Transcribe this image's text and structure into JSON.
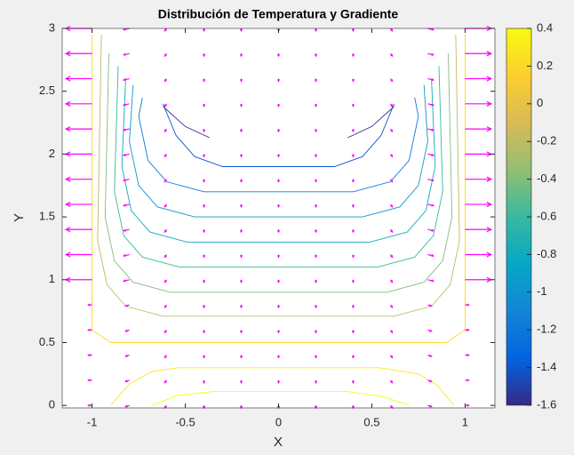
{
  "chart_data": {
    "type": "contour-quiver",
    "title": "Distribución de Temperatura y Gradiente",
    "xlabel": "X",
    "ylabel": "Y",
    "xlim": [
      -1.16,
      1.16
    ],
    "ylim": [
      -0.02,
      3
    ],
    "xticks": [
      -1,
      -0.5,
      0,
      0.5,
      1
    ],
    "yticks": [
      0,
      0.5,
      1,
      1.5,
      2,
      2.5,
      3
    ],
    "colormap": "parula",
    "clim": [
      -1.6,
      0.4
    ],
    "cticks": [
      0.4,
      0.2,
      0,
      -0.2,
      -0.4,
      -0.6,
      -0.8,
      -1,
      -1.2,
      -1.4,
      -1.6
    ],
    "contours": [
      {
        "level": 0.2,
        "x": [
          -1,
          -1,
          -0.9,
          0.9,
          1,
          1
        ],
        "y": [
          2.95,
          0.6,
          0.5,
          0.5,
          0.6,
          2.95
        ]
      },
      {
        "level": 0.3,
        "x": [
          -0.9,
          -0.8,
          -0.68,
          -0.54,
          0.54,
          0.75,
          0.85,
          0.94
        ],
        "y": [
          0,
          0.17,
          0.27,
          0.3,
          0.3,
          0.25,
          0.16,
          0
        ]
      },
      {
        "level": 0.4,
        "x": [
          -0.68,
          -0.54,
          -0.35,
          0.37,
          0.56,
          0.7
        ],
        "y": [
          0,
          0.08,
          0.11,
          0.11,
          0.07,
          0
        ]
      },
      {
        "level": -0.2,
        "x": [
          -0.95,
          -0.97,
          -0.92,
          -0.82,
          -0.62,
          0.62,
          0.82,
          0.92,
          0.97,
          0.95
        ],
        "y": [
          2.95,
          1.31,
          0.96,
          0.79,
          0.71,
          0.71,
          0.79,
          0.96,
          1.31,
          2.95
        ]
      },
      {
        "level": -0.4,
        "x": [
          -0.91,
          -0.93,
          -0.88,
          -0.78,
          -0.58,
          0.58,
          0.78,
          0.88,
          0.93,
          0.91
        ],
        "y": [
          2.8,
          1.5,
          1.15,
          0.98,
          0.9,
          0.9,
          0.98,
          1.15,
          1.5,
          2.8
        ]
      },
      {
        "level": -0.6,
        "x": [
          -0.86,
          -0.88,
          -0.83,
          -0.73,
          -0.53,
          0.53,
          0.73,
          0.83,
          0.88,
          0.86
        ],
        "y": [
          2.7,
          1.7,
          1.35,
          1.18,
          1.1,
          1.1,
          1.18,
          1.35,
          1.7,
          2.7
        ]
      },
      {
        "level": -0.8,
        "x": [
          -0.82,
          -0.84,
          -0.79,
          -0.69,
          -0.49,
          0.49,
          0.69,
          0.79,
          0.84,
          0.82
        ],
        "y": [
          2.6,
          1.9,
          1.55,
          1.38,
          1.3,
          1.3,
          1.38,
          1.55,
          1.9,
          2.6
        ]
      },
      {
        "level": -1,
        "x": [
          -0.78,
          -0.8,
          -0.75,
          -0.65,
          -0.45,
          0.45,
          0.65,
          0.75,
          0.8,
          0.78
        ],
        "y": [
          2.55,
          2.1,
          1.75,
          1.58,
          1.5,
          1.5,
          1.58,
          1.75,
          2.1,
          2.55
        ]
      },
      {
        "level": -1.2,
        "x": [
          -0.73,
          -0.75,
          -0.7,
          -0.6,
          -0.4,
          0.4,
          0.6,
          0.7,
          0.75,
          0.73
        ],
        "y": [
          2.45,
          2.3,
          1.95,
          1.78,
          1.7,
          1.7,
          1.78,
          1.95,
          2.3,
          2.45
        ]
      },
      {
        "level": -1.4,
        "x": [
          -0.62,
          -0.55,
          -0.45,
          -0.3,
          0.3,
          0.45,
          0.55,
          0.62
        ],
        "y": [
          2.4,
          2.15,
          1.98,
          1.9,
          1.9,
          1.98,
          2.15,
          2.4
        ]
      },
      {
        "level": -1.6,
        "x": [
          -0.62,
          -0.5,
          -0.37,
          null,
          0.37,
          0.5,
          0.62
        ],
        "y": [
          2.38,
          2.22,
          2.13,
          null,
          2.13,
          2.22,
          2.38
        ]
      }
    ],
    "quiver": {
      "color": "#ff00ff",
      "x": [
        -1,
        -0.8,
        -0.6,
        -0.4,
        -0.2,
        0,
        0.2,
        0.4,
        0.6,
        0.8,
        1
      ],
      "y": [
        0,
        0.2,
        0.4,
        0.6,
        0.8,
        1,
        1.2,
        1.4,
        1.6,
        1.8,
        2,
        2.2,
        2.4,
        2.6,
        2.8,
        3
      ],
      "u": [
        [
          -0.02,
          -0.02,
          -0.01,
          0,
          0,
          0,
          0,
          0,
          0.01,
          0.02,
          0.02
        ],
        [
          -0.02,
          -0.02,
          -0.01,
          0,
          0,
          0,
          0,
          0,
          0.01,
          0.02,
          0.02
        ],
        [
          -0.02,
          -0.02,
          -0.01,
          0,
          0,
          0,
          0,
          0,
          0.01,
          0.02,
          0.02
        ],
        [
          -0.02,
          -0.02,
          -0.01,
          0,
          0,
          0,
          0,
          0,
          0.01,
          0.02,
          0.02
        ],
        [
          -0.02,
          -0.02,
          -0.01,
          0,
          0,
          0,
          0,
          0,
          0.01,
          0.02,
          0.02
        ],
        [
          -0.14,
          -0.03,
          -0.01,
          0,
          0,
          0,
          0,
          0,
          0.01,
          0.03,
          0.14
        ],
        [
          -0.14,
          -0.03,
          -0.01,
          0,
          0,
          0,
          0,
          0,
          0.01,
          0.03,
          0.14
        ],
        [
          -0.14,
          -0.03,
          -0.01,
          0,
          0,
          0,
          0,
          0,
          0.01,
          0.03,
          0.14
        ],
        [
          -0.14,
          -0.03,
          -0.01,
          0,
          0,
          0,
          0,
          0,
          0.01,
          0.03,
          0.14
        ],
        [
          -0.14,
          -0.03,
          -0.01,
          0,
          0,
          0,
          0,
          0,
          0.01,
          0.03,
          0.14
        ],
        [
          -0.14,
          -0.03,
          -0.01,
          0,
          0,
          0,
          0,
          0,
          0.01,
          0.03,
          0.14
        ],
        [
          -0.14,
          -0.03,
          -0.01,
          0,
          0,
          0,
          0,
          0,
          0.01,
          0.03,
          0.14
        ],
        [
          -0.14,
          -0.03,
          -0.01,
          0,
          0,
          0,
          0,
          0,
          0.01,
          0.03,
          0.14
        ],
        [
          -0.14,
          -0.03,
          -0.01,
          0,
          0,
          0,
          0,
          0,
          0.01,
          0.03,
          0.14
        ],
        [
          -0.14,
          -0.03,
          -0.01,
          0,
          0,
          0,
          0,
          0,
          0.01,
          0.03,
          0.14
        ],
        [
          -0.14,
          -0.03,
          -0.01,
          0,
          0,
          0,
          0,
          0,
          0.01,
          0.03,
          0.14
        ]
      ],
      "v": [
        [
          0,
          -0.01,
          -0.02,
          -0.02,
          -0.02,
          -0.02,
          -0.02,
          -0.02,
          -0.02,
          -0.01,
          0
        ],
        [
          0,
          -0.01,
          -0.02,
          -0.02,
          -0.02,
          -0.02,
          -0.02,
          -0.02,
          -0.02,
          -0.01,
          0
        ],
        [
          0,
          -0.01,
          -0.02,
          -0.02,
          -0.02,
          -0.02,
          -0.02,
          -0.02,
          -0.02,
          -0.01,
          0
        ],
        [
          0,
          -0.01,
          -0.02,
          -0.02,
          -0.02,
          -0.02,
          -0.02,
          -0.02,
          -0.02,
          -0.01,
          0
        ],
        [
          0,
          -0.01,
          -0.02,
          -0.02,
          -0.02,
          -0.02,
          -0.02,
          -0.02,
          -0.02,
          -0.01,
          0
        ],
        [
          0,
          -0.01,
          -0.02,
          -0.02,
          -0.02,
          -0.02,
          -0.02,
          -0.02,
          -0.02,
          -0.01,
          0
        ],
        [
          0,
          -0.01,
          -0.02,
          -0.02,
          -0.02,
          -0.02,
          -0.02,
          -0.02,
          -0.02,
          -0.01,
          0
        ],
        [
          0,
          -0.01,
          -0.02,
          -0.02,
          -0.02,
          -0.02,
          -0.02,
          -0.02,
          -0.02,
          -0.01,
          0
        ],
        [
          0,
          -0.01,
          -0.02,
          -0.02,
          -0.02,
          -0.02,
          -0.02,
          -0.02,
          -0.02,
          -0.01,
          0
        ],
        [
          0,
          -0.01,
          -0.02,
          -0.02,
          -0.02,
          -0.02,
          -0.02,
          -0.02,
          -0.02,
          -0.01,
          0
        ],
        [
          0,
          -0.01,
          -0.02,
          -0.02,
          -0.02,
          -0.02,
          -0.02,
          -0.02,
          -0.02,
          -0.01,
          0
        ],
        [
          0,
          -0.01,
          -0.02,
          -0.02,
          -0.02,
          -0.02,
          -0.02,
          -0.02,
          -0.02,
          -0.01,
          0
        ],
        [
          0,
          -0.01,
          -0.02,
          -0.02,
          -0.02,
          -0.02,
          -0.02,
          -0.02,
          -0.02,
          -0.01,
          0
        ],
        [
          0,
          -0.01,
          -0.02,
          -0.02,
          -0.02,
          -0.02,
          -0.02,
          -0.02,
          -0.02,
          -0.01,
          0
        ],
        [
          0,
          -0.01,
          -0.02,
          -0.02,
          -0.02,
          -0.02,
          -0.02,
          -0.02,
          -0.02,
          -0.01,
          0
        ],
        [
          0,
          -0.01,
          -0.02,
          -0.02,
          -0.02,
          -0.02,
          -0.02,
          -0.02,
          -0.02,
          -0.01,
          0
        ]
      ]
    }
  }
}
